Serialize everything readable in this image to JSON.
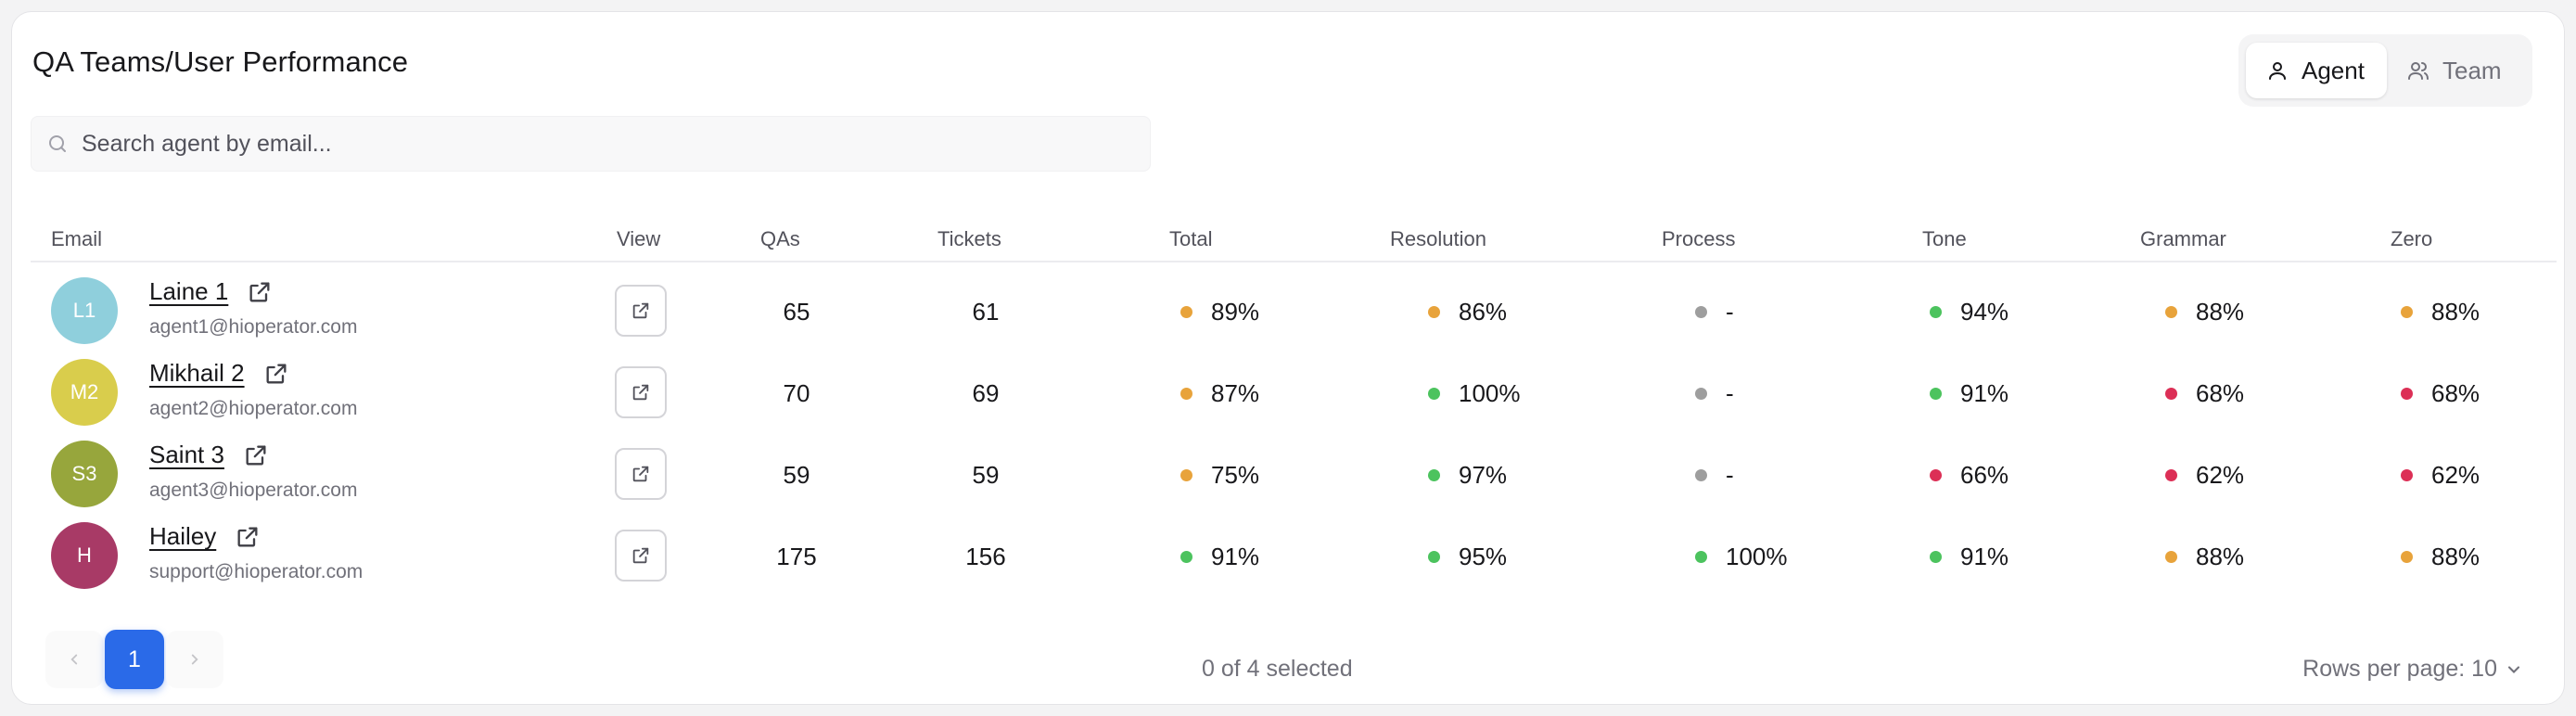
{
  "page": {
    "title": "QA Teams/User Performance"
  },
  "view_toggle": {
    "agent_label": "Agent",
    "team_label": "Team",
    "active": "Agent"
  },
  "search": {
    "placeholder": "Search agent by email..."
  },
  "columns": {
    "email": "Email",
    "view": "View",
    "qas": "QAs",
    "tickets": "Tickets",
    "total": "Total",
    "resolution": "Resolution",
    "process": "Process",
    "tone": "Tone",
    "grammar": "Grammar",
    "zero": "Zero"
  },
  "colors": {
    "orange": "#e8a33b",
    "green": "#4cc35e",
    "gray": "#9e9e9e",
    "red": "#dc2f56",
    "primary": "#2a6ae8"
  },
  "rows": [
    {
      "initials": "L1",
      "avatar_color": "#8fcfdc",
      "name": "Laine 1",
      "email": "agent1@hioperator.com",
      "qas": "65",
      "tickets": "61",
      "total": {
        "value": "89%",
        "status": "orange"
      },
      "resolution": {
        "value": "86%",
        "status": "orange"
      },
      "process": {
        "value": "-",
        "status": "gray"
      },
      "tone": {
        "value": "94%",
        "status": "green"
      },
      "grammar": {
        "value": "88%",
        "status": "orange"
      },
      "zero": {
        "value": "88%",
        "status": "orange"
      }
    },
    {
      "initials": "M2",
      "avatar_color": "#d9cd4c",
      "name": "Mikhail 2",
      "email": "agent2@hioperator.com",
      "qas": "70",
      "tickets": "69",
      "total": {
        "value": "87%",
        "status": "orange"
      },
      "resolution": {
        "value": "100%",
        "status": "green"
      },
      "process": {
        "value": "-",
        "status": "gray"
      },
      "tone": {
        "value": "91%",
        "status": "green"
      },
      "grammar": {
        "value": "68%",
        "status": "red"
      },
      "zero": {
        "value": "68%",
        "status": "red"
      }
    },
    {
      "initials": "S3",
      "avatar_color": "#97a63c",
      "name": "Saint 3",
      "email": "agent3@hioperator.com",
      "qas": "59",
      "tickets": "59",
      "total": {
        "value": "75%",
        "status": "orange"
      },
      "resolution": {
        "value": "97%",
        "status": "green"
      },
      "process": {
        "value": "-",
        "status": "gray"
      },
      "tone": {
        "value": "66%",
        "status": "red"
      },
      "grammar": {
        "value": "62%",
        "status": "red"
      },
      "zero": {
        "value": "62%",
        "status": "red"
      }
    },
    {
      "initials": "H",
      "avatar_color": "#a83a66",
      "name": "Hailey",
      "email": "support@hioperator.com",
      "qas": "175",
      "tickets": "156",
      "total": {
        "value": "91%",
        "status": "green"
      },
      "resolution": {
        "value": "95%",
        "status": "green"
      },
      "process": {
        "value": "100%",
        "status": "green"
      },
      "tone": {
        "value": "91%",
        "status": "green"
      },
      "grammar": {
        "value": "88%",
        "status": "orange"
      },
      "zero": {
        "value": "88%",
        "status": "orange"
      }
    }
  ],
  "footer": {
    "current_page": "1",
    "selection_text": "0 of 4 selected",
    "rows_per_page_label": "Rows per page: 10"
  },
  "icons": {
    "search": "search-icon",
    "agent": "user-icon",
    "team": "users-icon",
    "external": "external-link-icon",
    "prev": "chevron-left-icon",
    "next": "chevron-right-icon",
    "dropdown": "chevron-down-icon"
  }
}
